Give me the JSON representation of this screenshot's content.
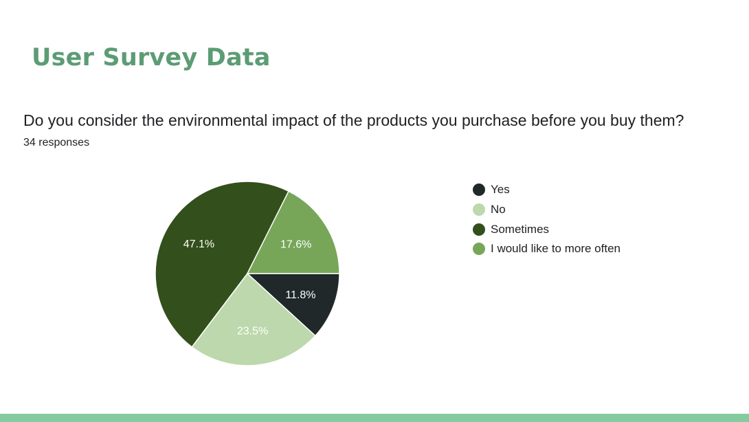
{
  "slide": {
    "title": "User Survey Data"
  },
  "survey": {
    "question": "Do you consider the environmental impact of the products you purchase before you buy them?",
    "responses": "34 responses"
  },
  "chart_data": {
    "type": "pie",
    "categories": [
      "Yes",
      "No",
      "Sometimes",
      "I would like to more often"
    ],
    "values": [
      11.8,
      23.5,
      47.1,
      17.6
    ],
    "labels": [
      "11.8%",
      "23.5%",
      "47.1%",
      "17.6%"
    ],
    "colors": [
      "#212829",
      "#bdd8ac",
      "#334f1b",
      "#77a659"
    ],
    "label_colors": [
      "#ffffff",
      "#ffffff",
      "#ffffff",
      "#ffffff"
    ],
    "legend_position": "right"
  },
  "theme": {
    "title_color": "#5c9c74",
    "footer_bar_color": "#84cc9f"
  }
}
